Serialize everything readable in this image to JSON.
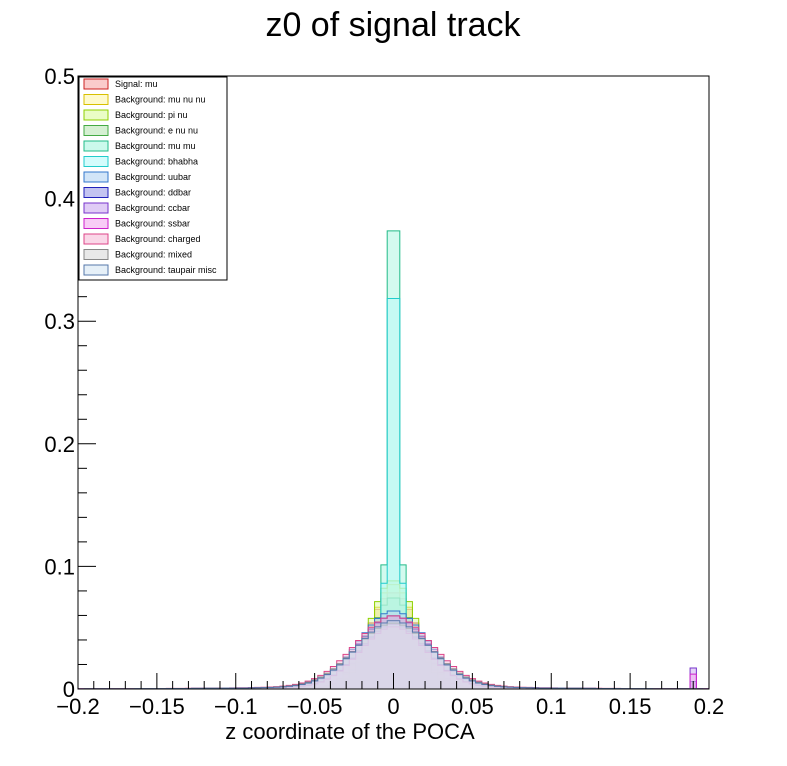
{
  "chart_data": {
    "type": "histogram",
    "title": "z0 of signal track",
    "xlabel": "z coordinate of the POCA",
    "ylabel": "",
    "xlim": [
      -0.2,
      0.2
    ],
    "ylim": [
      0,
      0.5
    ],
    "bin_width": 0.004,
    "x_ticks": [
      -0.2,
      -0.15,
      -0.1,
      -0.05,
      0,
      0.05,
      0.1,
      0.15,
      0.2
    ],
    "x_tick_labels": [
      "−0.2",
      "−0.15",
      "−0.1",
      "−0.05",
      "0",
      "0.05",
      "0.1",
      "0.15",
      "0.2"
    ],
    "y_ticks": [
      0,
      0.1,
      0.2,
      0.3,
      0.4,
      0.5
    ],
    "y_tick_labels": [
      "0",
      "0.1",
      "0.2",
      "0.3",
      "0.4",
      "0.5"
    ],
    "grid": false,
    "legend_position": "top-left",
    "series": [
      {
        "name": "Signal: mu",
        "fill": "#f7a8a8",
        "line": "#cc2222",
        "peak": 0.079,
        "sigma": 0.016,
        "tail": 0.0,
        "spike": 0.0
      },
      {
        "name": "Background: mu nu nu",
        "fill": "#fdf7a8",
        "line": "#d8c000",
        "peak": 0.086,
        "sigma": 0.014,
        "tail": 0.0,
        "spike": 0.0
      },
      {
        "name": "Background: pi nu",
        "fill": "#dcfca0",
        "line": "#8fd000",
        "peak": 0.089,
        "sigma": 0.015,
        "tail": 0.0,
        "spike": 0.0
      },
      {
        "name": "Background: e nu nu",
        "fill": "#b9e6b4",
        "line": "#44aa44",
        "peak": 0.075,
        "sigma": 0.014,
        "tail": 0.0,
        "spike": 0.0
      },
      {
        "name": "Background: mu mu",
        "fill": "#a8f5e0",
        "line": "#22bb88",
        "peak": 0.44,
        "sigma": 0.0035,
        "tail": 0.0,
        "spike": 0.0
      },
      {
        "name": "Background: bhabha",
        "fill": "#b8fafa",
        "line": "#22cccc",
        "peak": 0.375,
        "sigma": 0.0035,
        "tail": 0.0,
        "spike": 0.0
      },
      {
        "name": "Background: uubar",
        "fill": "#b4d4f4",
        "line": "#3377cc",
        "peak": 0.06,
        "sigma": 0.022,
        "tail": 0.004,
        "spike": 0.0
      },
      {
        "name": "Background: ddbar",
        "fill": "#9c9ce8",
        "line": "#2222bb",
        "peak": 0.056,
        "sigma": 0.022,
        "tail": 0.004,
        "spike": 0.006
      },
      {
        "name": "Background: ccbar",
        "fill": "#ccaaf0",
        "line": "#7733cc",
        "peak": 0.05,
        "sigma": 0.021,
        "tail": 0.003,
        "spike": 0.017
      },
      {
        "name": "Background: ssbar",
        "fill": "#f3aaf0",
        "line": "#cc22cc",
        "peak": 0.048,
        "sigma": 0.021,
        "tail": 0.003,
        "spike": 0.012
      },
      {
        "name": "Background: charged",
        "fill": "#f6bcd8",
        "line": "#dd4488",
        "peak": 0.055,
        "sigma": 0.024,
        "tail": 0.005,
        "spike": 0.0
      },
      {
        "name": "Background: mixed",
        "fill": "#d8d8d8",
        "line": "#888888",
        "peak": 0.05,
        "sigma": 0.024,
        "tail": 0.004,
        "spike": 0.0
      },
      {
        "name": "Background: taupair misc",
        "fill": "#d6e6f4",
        "line": "#5577aa",
        "peak": 0.052,
        "sigma": 0.023,
        "tail": 0.004,
        "spike": 0.0
      }
    ]
  }
}
